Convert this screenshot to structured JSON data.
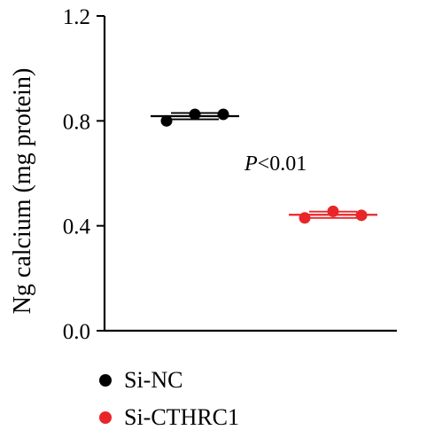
{
  "chart_data": {
    "type": "scatter",
    "ylabel": "Ng calcium (mg protein)",
    "ylim": [
      0.0,
      1.2
    ],
    "yticks": [
      "0.0",
      "0.4",
      "0.8",
      "1.2"
    ],
    "grid": false,
    "legend_position": "bottom-left",
    "annotation": "P<0.01",
    "series": [
      {
        "name": "Si-NC",
        "color": "#000000",
        "values": [
          0.8,
          0.825,
          0.825
        ],
        "mean": 0.818,
        "error": 0.012
      },
      {
        "name": "Si-CTHRC1",
        "color": "#e8262a",
        "values": [
          0.43,
          0.455,
          0.44
        ],
        "mean": 0.442,
        "error": 0.012
      }
    ]
  }
}
